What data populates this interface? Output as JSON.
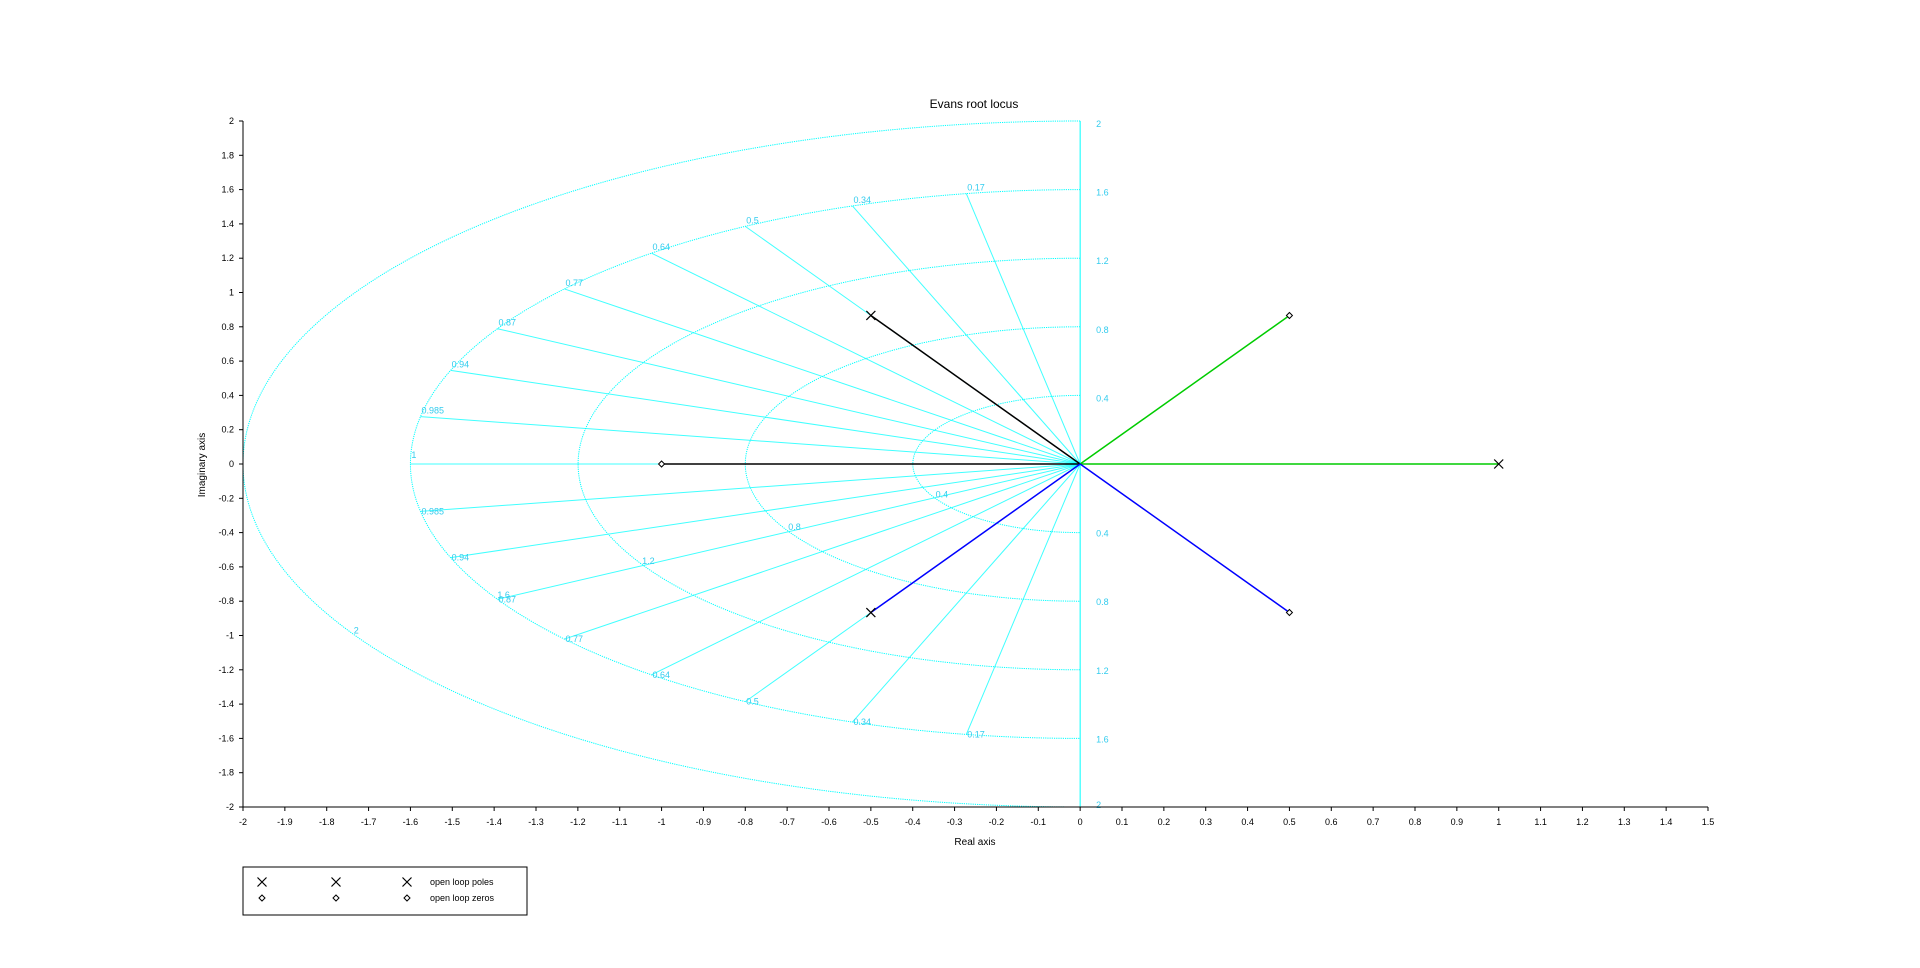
{
  "chart_data": {
    "type": "line",
    "title": "Evans root locus",
    "xlabel": "Real axis",
    "ylabel": "Imaginary axis",
    "xlim": [
      -2,
      1.5
    ],
    "ylim": [
      -2,
      2
    ],
    "x_ticks": [
      "-2",
      "-1.9",
      "-1.8",
      "-1.7",
      "-1.6",
      "-1.5",
      "-1.4",
      "-1.3",
      "-1.2",
      "-1.1",
      "-1",
      "-0.9",
      "-0.8",
      "-0.7",
      "-0.6",
      "-0.5",
      "-0.4",
      "-0.3",
      "-0.2",
      "-0.1",
      "0",
      "0.1",
      "0.2",
      "0.3",
      "0.4",
      "0.5",
      "0.6",
      "0.7",
      "0.8",
      "0.9",
      "1",
      "1.1",
      "1.2",
      "1.3",
      "1.4",
      "1.5"
    ],
    "y_ticks": [
      "2",
      "1.8",
      "1.6",
      "1.4",
      "1.2",
      "1",
      "0.8",
      "0.6",
      "0.4",
      "0.2",
      "0",
      "-0.2",
      "-0.4",
      "-0.6",
      "-0.8",
      "-1",
      "-1.2",
      "-1.4",
      "-1.6",
      "-1.8",
      "-2"
    ],
    "grid": {
      "color": "#00ffff",
      "label_color": "#33ccee",
      "omega_n_rings": [
        0.4,
        0.8,
        1.2,
        1.6,
        2
      ],
      "ring_labels_upper": [
        "2",
        "1.6",
        "1.2",
        "0.8",
        "0.4"
      ],
      "ring_labels_lower": [
        "0.4",
        "0.8",
        "1.2",
        "1.6",
        "2"
      ],
      "inner_ring_labels": [
        "0.4",
        "0.8",
        "1.2",
        "1.6",
        "2"
      ],
      "damping_ratios": [
        0.17,
        0.34,
        0.5,
        0.64,
        0.77,
        0.87,
        0.94,
        0.985,
        1
      ],
      "damping_labels": [
        "0.17",
        "0.34",
        "0.5",
        "0.64",
        "0.77",
        "0.87",
        "0.94",
        "0.985",
        "1"
      ]
    },
    "series": [
      {
        "color": "#000000",
        "points": [
          [
            -0.5,
            0.866
          ],
          [
            0,
            0
          ]
        ]
      },
      {
        "color": "#000000",
        "points": [
          [
            -1,
            0
          ],
          [
            0,
            0
          ]
        ]
      },
      {
        "color": "#0000ff",
        "points": [
          [
            -0.5,
            -0.866
          ],
          [
            0,
            0
          ]
        ]
      },
      {
        "color": "#00cc00",
        "points": [
          [
            0.5,
            0.866
          ],
          [
            0,
            0
          ]
        ]
      },
      {
        "color": "#00cc00",
        "points": [
          [
            1,
            0
          ],
          [
            0,
            0
          ]
        ]
      },
      {
        "color": "#0000ff",
        "points": [
          [
            0.5,
            -0.866
          ],
          [
            0,
            0
          ]
        ]
      }
    ],
    "poles": [
      [
        -0.5,
        0.866
      ],
      [
        -0.5,
        -0.866
      ],
      [
        1,
        0
      ]
    ],
    "zeros": [
      [
        -1,
        0
      ],
      [
        0.5,
        0.866
      ],
      [
        0.5,
        -0.866
      ]
    ],
    "legend": {
      "position": "bottom-left",
      "entries": [
        {
          "label": "open loop poles",
          "marker": "x"
        },
        {
          "label": "open loop zeros",
          "marker": "diamond"
        }
      ]
    }
  }
}
